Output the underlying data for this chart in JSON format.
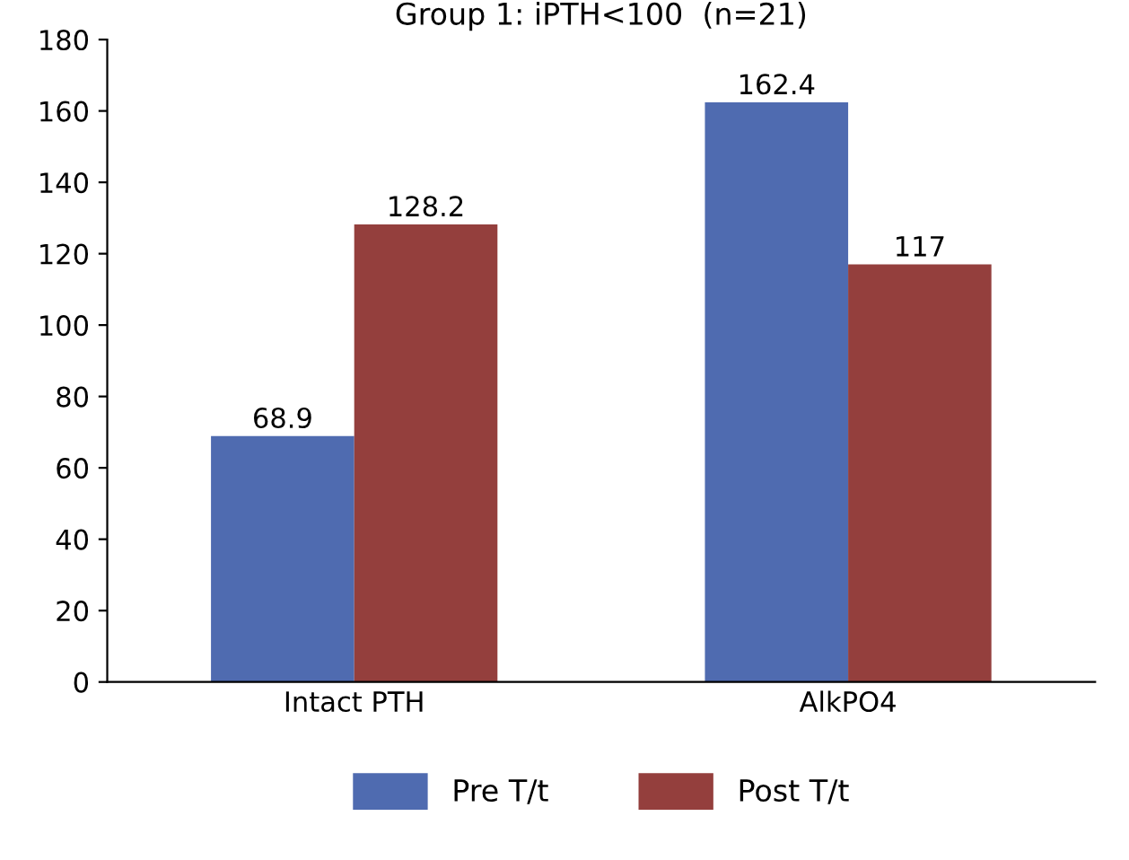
{
  "chart_data": {
    "type": "bar",
    "title": "Group 1: iPTH<100  (n=21)",
    "categories": [
      "Intact PTH",
      "AlkPO4"
    ],
    "series": [
      {
        "name": "Pre T/t",
        "color": "#4f6bb0",
        "values": [
          68.9,
          162.4
        ]
      },
      {
        "name": "Post T/t",
        "color": "#943f3d",
        "values": [
          128.2,
          117
        ]
      }
    ],
    "ylim": [
      0,
      180
    ],
    "yticks": [
      0,
      20,
      40,
      60,
      80,
      100,
      120,
      140,
      160,
      180
    ],
    "data_labels": true,
    "legend": "bottom",
    "grid": false
  }
}
